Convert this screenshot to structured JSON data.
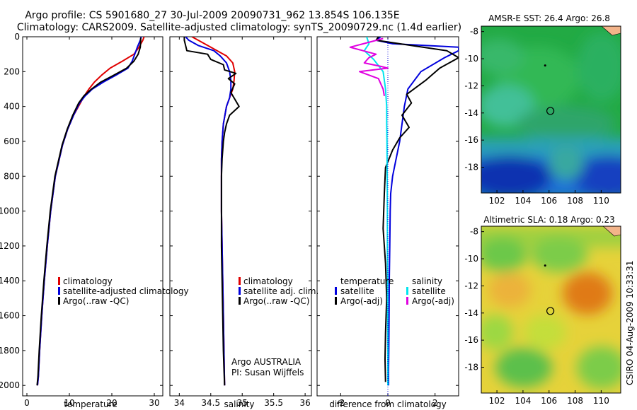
{
  "title": {
    "line1": "Argo profile: CS 5901680_27 30-Jul-2009 20090731_962 13.854S 106.135E",
    "line2": "Climatology: CARS2009. Satellite-adjusted climatology: synTS_20090729.nc (1.4d earlier)"
  },
  "footer_credit": "CSIRO 04-Aug-2009 10:33:31",
  "colors": {
    "climatology": "#e00000",
    "satellite": "#0000dd",
    "argo": "#000000",
    "satellite_sal_diff": "#00e5ee",
    "argo_sal_diff": "#e000e0"
  },
  "chart_data": [
    {
      "type": "line",
      "id": "temperature",
      "xlabel": "temperature",
      "ylabel": "",
      "xlim": [
        -1,
        32
      ],
      "ylim": [
        2060,
        0
      ],
      "xticks": [
        0,
        10,
        20,
        30
      ],
      "yticks": [
        0,
        200,
        400,
        600,
        800,
        1000,
        1200,
        1400,
        1600,
        1800,
        2000
      ],
      "legend": {
        "position": "bottom-right",
        "entries": [
          "climatology",
          "satellite-adjusted climatology",
          "Argo(..raw -QC)"
        ]
      },
      "series": [
        {
          "name": "climatology",
          "color": "#e00000",
          "x": [
            27.6,
            27.3,
            26.4,
            25.2,
            22.5,
            19.6,
            17.6,
            15.9,
            14.6,
            13.5,
            12.6,
            11.0,
            9.6,
            8.4,
            6.7,
            5.6,
            4.8,
            4.1,
            3.5,
            3.0,
            2.7,
            2.5
          ],
          "y": [
            0,
            20,
            60,
            100,
            140,
            180,
            220,
            260,
            300,
            340,
            380,
            450,
            530,
            620,
            800,
            1000,
            1200,
            1400,
            1600,
            1800,
            1950,
            2000
          ]
        },
        {
          "name": "satellite-adjusted climatology",
          "color": "#0000dd",
          "x": [
            26.9,
            26.7,
            26.0,
            25.4,
            24.8,
            23.8,
            21.0,
            18.0,
            15.4,
            13.7,
            12.4,
            11.0,
            9.6,
            8.4,
            6.7,
            5.6,
            4.8,
            4.1,
            3.5,
            3.0,
            2.7,
            2.5
          ],
          "y": [
            0,
            20,
            60,
            100,
            140,
            180,
            220,
            260,
            300,
            340,
            380,
            450,
            530,
            620,
            800,
            1000,
            1200,
            1400,
            1600,
            1800,
            1950,
            2000
          ]
        },
        {
          "name": "Argo(..raw -QC)",
          "color": "#000000",
          "x": [
            26.8,
            26.8,
            26.7,
            26.2,
            25.2,
            23.5,
            20.5,
            17.4,
            15.2,
            13.4,
            12.2,
            10.8,
            9.5,
            8.3,
            6.6,
            5.5,
            4.7,
            4.0,
            3.4,
            2.9,
            2.6,
            2.4
          ],
          "y": [
            5,
            20,
            60,
            100,
            140,
            180,
            220,
            260,
            300,
            340,
            380,
            450,
            530,
            620,
            800,
            1000,
            1200,
            1400,
            1600,
            1800,
            1950,
            2000
          ]
        }
      ]
    },
    {
      "type": "line",
      "id": "salinity",
      "xlabel": "salinity",
      "ylabel": "",
      "xlim": [
        33.85,
        36.1
      ],
      "ylim": [
        2060,
        0
      ],
      "xticks": [
        34,
        34.5,
        35,
        35.5,
        36
      ],
      "xtick_labels": [
        "34",
        "34.5",
        "35",
        "35.5",
        "36"
      ],
      "legend": {
        "position": "bottom-right",
        "entries": [
          "climatology",
          "satellite adj. clim.",
          "Argo(..raw -QC)"
        ]
      },
      "annotation": {
        "line1": "Argo AUSTRALIA",
        "line2": "PI: Susan Wijffels"
      },
      "series": [
        {
          "name": "climatology",
          "color": "#e00000",
          "x": [
            34.2,
            34.3,
            34.45,
            34.6,
            34.75,
            34.85,
            34.88,
            34.87,
            34.85,
            34.8,
            34.75,
            34.7,
            34.68,
            34.67,
            34.67,
            34.67,
            34.68,
            34.69,
            34.7,
            34.71,
            34.72
          ],
          "y": [
            0,
            20,
            50,
            80,
            110,
            150,
            200,
            250,
            300,
            350,
            400,
            500,
            600,
            700,
            800,
            1000,
            1200,
            1400,
            1600,
            1800,
            2000
          ]
        },
        {
          "name": "satellite adj. clim.",
          "color": "#0000dd",
          "x": [
            34.1,
            34.15,
            34.3,
            34.55,
            34.65,
            34.75,
            34.8,
            34.82,
            34.82,
            34.8,
            34.75,
            34.7,
            34.68,
            34.67,
            34.67,
            34.67,
            34.68,
            34.69,
            34.7,
            34.71,
            34.72
          ],
          "y": [
            0,
            20,
            50,
            80,
            110,
            150,
            200,
            250,
            300,
            350,
            400,
            500,
            600,
            700,
            800,
            1000,
            1200,
            1400,
            1600,
            1800,
            2000
          ]
        },
        {
          "name": "Argo(..raw -QC)",
          "color": "#000000",
          "x": [
            34.08,
            34.08,
            34.12,
            34.45,
            34.5,
            34.7,
            34.72,
            34.9,
            34.78,
            34.88,
            34.82,
            34.95,
            34.8,
            34.75,
            34.72,
            34.7,
            34.68,
            34.67,
            34.67,
            34.67,
            34.68,
            34.69,
            34.7,
            34.71,
            34.72
          ],
          "y": [
            0,
            20,
            80,
            100,
            130,
            160,
            190,
            210,
            240,
            270,
            320,
            400,
            450,
            500,
            550,
            600,
            700,
            800,
            1000,
            1200,
            1400,
            1600,
            1800,
            1900,
            2000
          ]
        }
      ]
    },
    {
      "type": "line",
      "id": "difference",
      "xlabel": "difference from climatology",
      "ylabel": "",
      "xlim": [
        -3,
        3
      ],
      "ylim": [
        2060,
        0
      ],
      "xticks": [
        -2,
        0,
        2
      ],
      "legend": {
        "position": "bottom",
        "columns": [
          {
            "title": "temperature",
            "entries": [
              "satellite",
              "Argo(-adj)"
            ]
          },
          {
            "title": "salinity",
            "entries": [
              "satellite",
              "Argo(-adj)"
            ]
          }
        ]
      },
      "series": [
        {
          "name": "temperature satellite",
          "color": "#0000dd",
          "x": [
            -0.3,
            -0.5,
            0.2,
            3.0,
            3.0,
            2.4,
            1.4,
            0.85,
            0.7,
            0.6,
            0.5,
            0.35,
            0.2,
            0.12,
            0.1,
            0.08,
            0.06,
            0.05,
            0.04,
            0.03,
            0.03
          ],
          "y": [
            0,
            20,
            40,
            60,
            80,
            120,
            200,
            300,
            400,
            500,
            600,
            700,
            800,
            900,
            1000,
            1200,
            1400,
            1600,
            1800,
            1900,
            2000
          ]
        },
        {
          "name": "temperature Argo(-adj)",
          "color": "#000000",
          "x": [
            -0.4,
            -0.5,
            0.5,
            2.5,
            3.0,
            2.2,
            1.6,
            0.8,
            1.0,
            0.6,
            0.9,
            0.5,
            0.2,
            -0.1,
            -0.15,
            -0.2,
            -0.1,
            -0.05,
            -0.1,
            -0.12,
            -0.1
          ],
          "y": [
            0,
            20,
            40,
            80,
            120,
            180,
            250,
            330,
            380,
            450,
            520,
            580,
            650,
            750,
            900,
            1100,
            1300,
            1500,
            1700,
            1850,
            1980
          ]
        },
        {
          "name": "salinity satellite",
          "color": "#00e5ee",
          "x": [
            -0.9,
            -0.8,
            -1.0,
            -0.6,
            -0.2,
            -0.1,
            -0.05,
            -0.05,
            -0.04,
            -0.03,
            -0.02,
            -0.02,
            -0.01,
            -0.01,
            0.0,
            0.0
          ],
          "y": [
            0,
            40,
            80,
            130,
            200,
            300,
            400,
            500,
            600,
            800,
            1000,
            1200,
            1400,
            1600,
            1800,
            2000
          ]
        },
        {
          "name": "salinity Argo(-adj)",
          "color": "#e000e0",
          "x": [
            -0.2,
            -1.6,
            -0.5,
            -0.8,
            -1.0,
            -0.3,
            0.0,
            -1.2,
            -0.4,
            -0.2,
            -0.15
          ],
          "y": [
            10,
            60,
            100,
            120,
            150,
            170,
            180,
            200,
            240,
            300,
            340
          ]
        }
      ]
    },
    {
      "type": "heatmap",
      "id": "sst",
      "title": "AMSR-E SST: 26.4  Argo: 26.8",
      "xlim": [
        100.8,
        111.5
      ],
      "ylim": [
        -19.9,
        -7.6
      ],
      "xticks": [
        102,
        104,
        106,
        108,
        110
      ],
      "yticks": [
        -8,
        -10,
        -12,
        -14,
        -16,
        -18
      ],
      "markers": [
        {
          "lon": 106.1,
          "lat": -13.85,
          "kind": "circle"
        },
        {
          "lon": 105.7,
          "lat": -10.5,
          "kind": "dot"
        }
      ]
    },
    {
      "type": "heatmap",
      "id": "sla",
      "title": "Altimetric SLA: 0.18  Argo: 0.23",
      "xlim": [
        100.8,
        111.5
      ],
      "ylim": [
        -19.9,
        -7.6
      ],
      "xticks": [
        102,
        104,
        106,
        108,
        110
      ],
      "yticks": [
        -8,
        -10,
        -12,
        -14,
        -16,
        -18
      ],
      "markers": [
        {
          "lon": 106.1,
          "lat": -13.85,
          "kind": "circle"
        },
        {
          "lon": 105.7,
          "lat": -10.5,
          "kind": "dot"
        }
      ]
    }
  ]
}
